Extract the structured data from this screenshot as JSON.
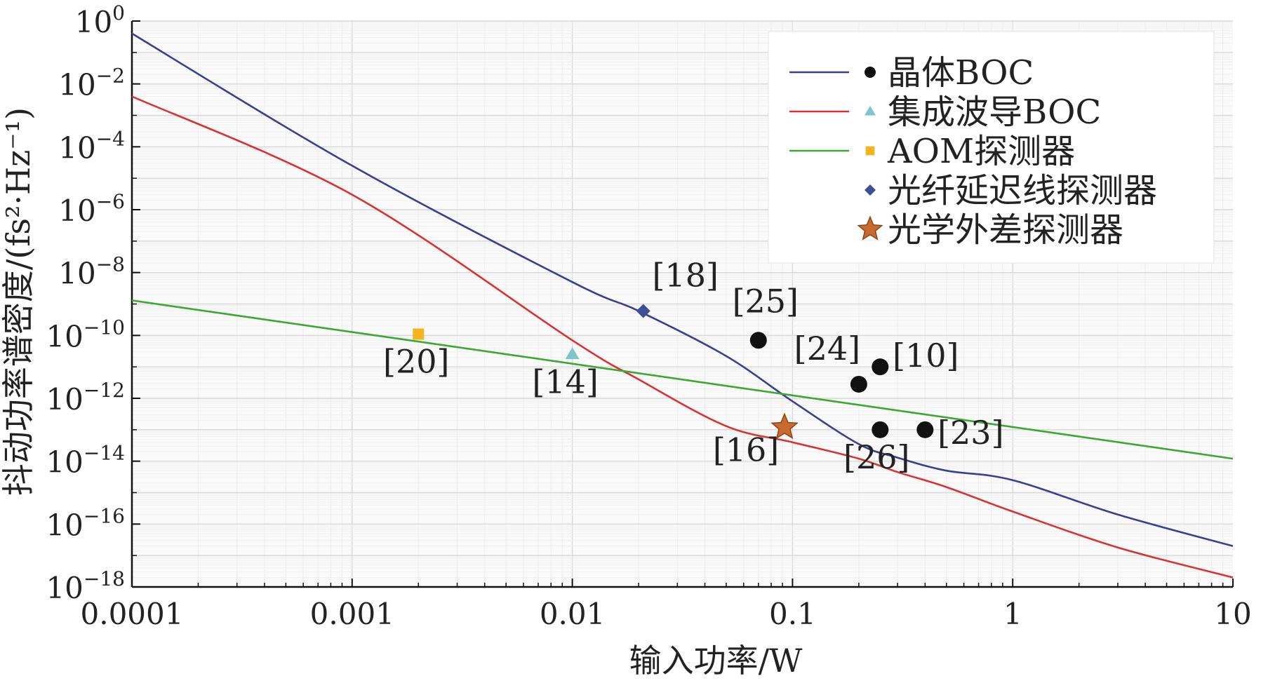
{
  "chart_data": {
    "type": "line",
    "xlabel": "输入功率/W",
    "ylabel": "抖动功率谱密度/(fs²·Hz⁻¹)",
    "xscale": "log",
    "yscale": "log",
    "xlim": [
      0.0001,
      10
    ],
    "ylim": [
      1e-18,
      1
    ],
    "grid": true,
    "legend_position": "top-right",
    "x_tick_values": [
      0.0001,
      0.001,
      0.01,
      0.1,
      1,
      10
    ],
    "x_tick_labels": [
      "0.0001",
      "0.001",
      "0.01",
      "0.1",
      "1",
      "10"
    ],
    "y_ticks": [
      {
        "value": 1,
        "base": "10",
        "exp": "0"
      },
      {
        "value": 0.01,
        "base": "10",
        "exp": "−2"
      },
      {
        "value": 0.0001,
        "base": "10",
        "exp": "−4"
      },
      {
        "value": 1e-06,
        "base": "10",
        "exp": "−6"
      },
      {
        "value": 1e-08,
        "base": "10",
        "exp": "−8"
      },
      {
        "value": 1e-10,
        "base": "10",
        "exp": "−10"
      },
      {
        "value": 1e-12,
        "base": "10",
        "exp": "−12"
      },
      {
        "value": 1e-14,
        "base": "10",
        "exp": "−14"
      },
      {
        "value": 1e-16,
        "base": "10",
        "exp": "−16"
      },
      {
        "value": 1e-18,
        "base": "10",
        "exp": "−18"
      }
    ],
    "series": [
      {
        "name": "晶体BOC",
        "color": "#3a3f8f",
        "marker": "circle",
        "marker_color": "#111111",
        "x": [
          0.0001,
          0.001,
          0.01,
          0.02,
          0.05,
          0.1,
          0.2,
          0.3,
          0.5,
          1,
          3,
          10
        ],
        "y": [
          0.4,
          2.5e-05,
          5e-09,
          6e-10,
          2.2e-11,
          8e-13,
          3.5e-14,
          1.3e-14,
          5e-15,
          2.5e-15,
          2e-16,
          2e-17
        ]
      },
      {
        "name": "集成波导BOC",
        "color": "#d93232",
        "marker": "triangle",
        "marker_color": "#7cc6cc",
        "x": [
          0.0001,
          0.001,
          0.01,
          0.02,
          0.05,
          0.1,
          0.2,
          0.3,
          0.5,
          1,
          3,
          10
        ],
        "y": [
          0.004,
          3e-06,
          7e-11,
          4e-12,
          1.3e-13,
          4e-14,
          1.2e-14,
          4.5e-15,
          1.5e-15,
          2.5e-16,
          1.8e-17,
          2e-18
        ]
      },
      {
        "name": "AOM探测器",
        "color": "#3aa832",
        "marker": "square",
        "marker_color": "#f2b51f",
        "x": [
          0.0001,
          10
        ],
        "y": [
          1.3e-09,
          1.2e-14
        ]
      },
      {
        "name": "光纤延迟线探测器",
        "marker": "diamond",
        "marker_color": "#3d4f96"
      },
      {
        "name": "光学外差探测器",
        "marker": "star",
        "marker_color": "#c96a2e"
      }
    ],
    "points": [
      {
        "label": "[25]",
        "marker": "circle",
        "x": 0.07,
        "y": 7e-11
      },
      {
        "label": "[24]",
        "marker": "circle",
        "x": 0.2,
        "y": 2.8e-12
      },
      {
        "label": "[10]",
        "marker": "circle",
        "x": 0.25,
        "y": 1e-11
      },
      {
        "label": "[26]",
        "marker": "circle",
        "x": 0.25,
        "y": 1e-13
      },
      {
        "label": "[23]",
        "marker": "circle",
        "x": 0.4,
        "y": 1e-13
      },
      {
        "label": "[14]",
        "marker": "triangle",
        "x": 0.01,
        "y": 2.5e-11
      },
      {
        "label": "[20]",
        "marker": "square",
        "x": 0.002,
        "y": 1.1e-10
      },
      {
        "label": "[18]",
        "marker": "diamond",
        "x": 0.021,
        "y": 6e-10
      },
      {
        "label": "[16]",
        "marker": "star",
        "x": 0.092,
        "y": 1.2e-13
      }
    ]
  }
}
